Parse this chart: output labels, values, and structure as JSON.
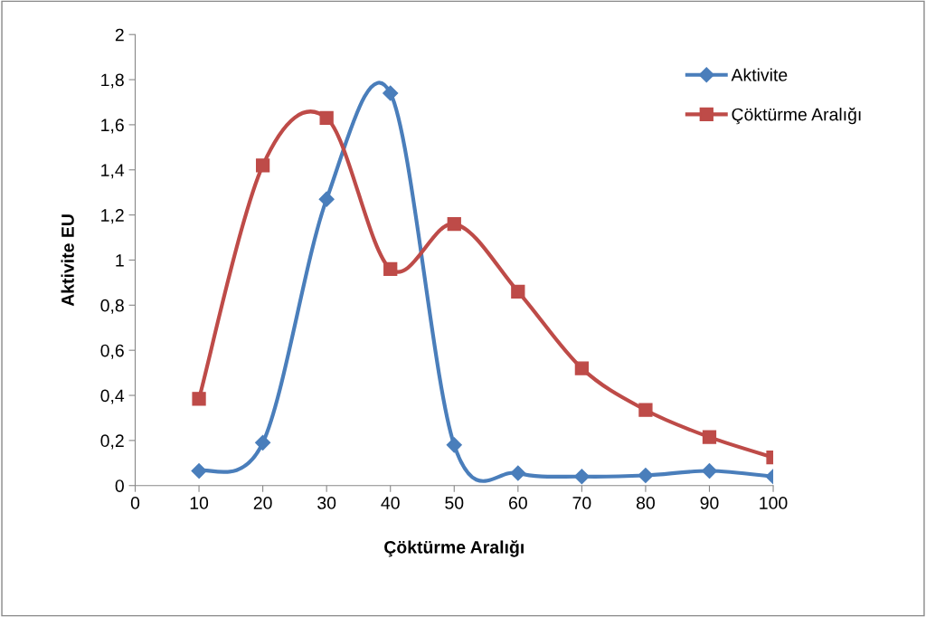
{
  "chart_data": {
    "type": "line",
    "xlabel": "Çöktürme Aralığı",
    "ylabel": "Aktivite EU",
    "x": [
      10,
      20,
      30,
      40,
      50,
      60,
      70,
      80,
      90,
      100
    ],
    "series": [
      {
        "name": "Aktivite",
        "color": "#4a7ebb",
        "marker": "diamond",
        "values": [
          0.065,
          0.19,
          1.27,
          1.74,
          0.18,
          0.055,
          0.04,
          0.045,
          0.065,
          0.04
        ]
      },
      {
        "name": "Çöktürme Aralığı",
        "color": "#be4b48",
        "marker": "square",
        "values": [
          0.385,
          1.42,
          1.63,
          0.96,
          1.16,
          0.86,
          0.52,
          0.335,
          0.215,
          0.125
        ]
      }
    ],
    "xlim": [
      0,
      100
    ],
    "xticks": [
      0,
      10,
      20,
      30,
      40,
      50,
      60,
      70,
      80,
      90,
      100
    ],
    "ylim": [
      0,
      2
    ],
    "yticks": [
      0,
      {
        "value": 0.2,
        "label": "0,2"
      },
      {
        "value": 0.4,
        "label": "0,4"
      },
      {
        "value": 0.6,
        "label": "0,6"
      },
      {
        "value": 0.8,
        "label": "0,8"
      },
      1,
      {
        "value": 1.2,
        "label": "1,2"
      },
      {
        "value": 1.4,
        "label": "1,4"
      },
      {
        "value": 1.6,
        "label": "1,6"
      },
      {
        "value": 1.8,
        "label": "1,8"
      },
      2
    ],
    "grid": false,
    "legend": "right",
    "line_style": "solid"
  }
}
